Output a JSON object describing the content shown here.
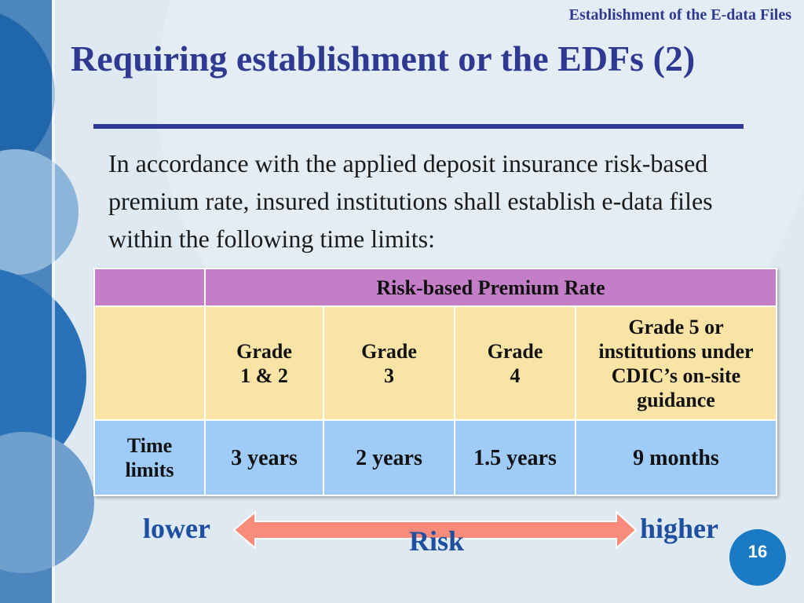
{
  "header": {
    "section": "Establishment of the E-data Files",
    "title": "Requiring establishment or the EDFs (2)"
  },
  "body": {
    "paragraph": "In accordance with the applied deposit insurance risk-based premium rate, insured institutions shall establish e-data files within the following time limits:"
  },
  "table": {
    "header": "Risk-based Premium Rate",
    "grades": [
      "Grade\n1 & 2",
      "Grade\n3",
      "Grade\n4",
      "Grade 5 or\ninstitutions under\nCDIC’s on-site\nguidance"
    ],
    "row_label": "Time\nlimits",
    "limits": [
      "3 years",
      "2 years",
      "1.5 years",
      "9 months"
    ]
  },
  "risk_scale": {
    "low": "lower",
    "high": "higher",
    "label": "Risk"
  },
  "page_number": "16"
}
